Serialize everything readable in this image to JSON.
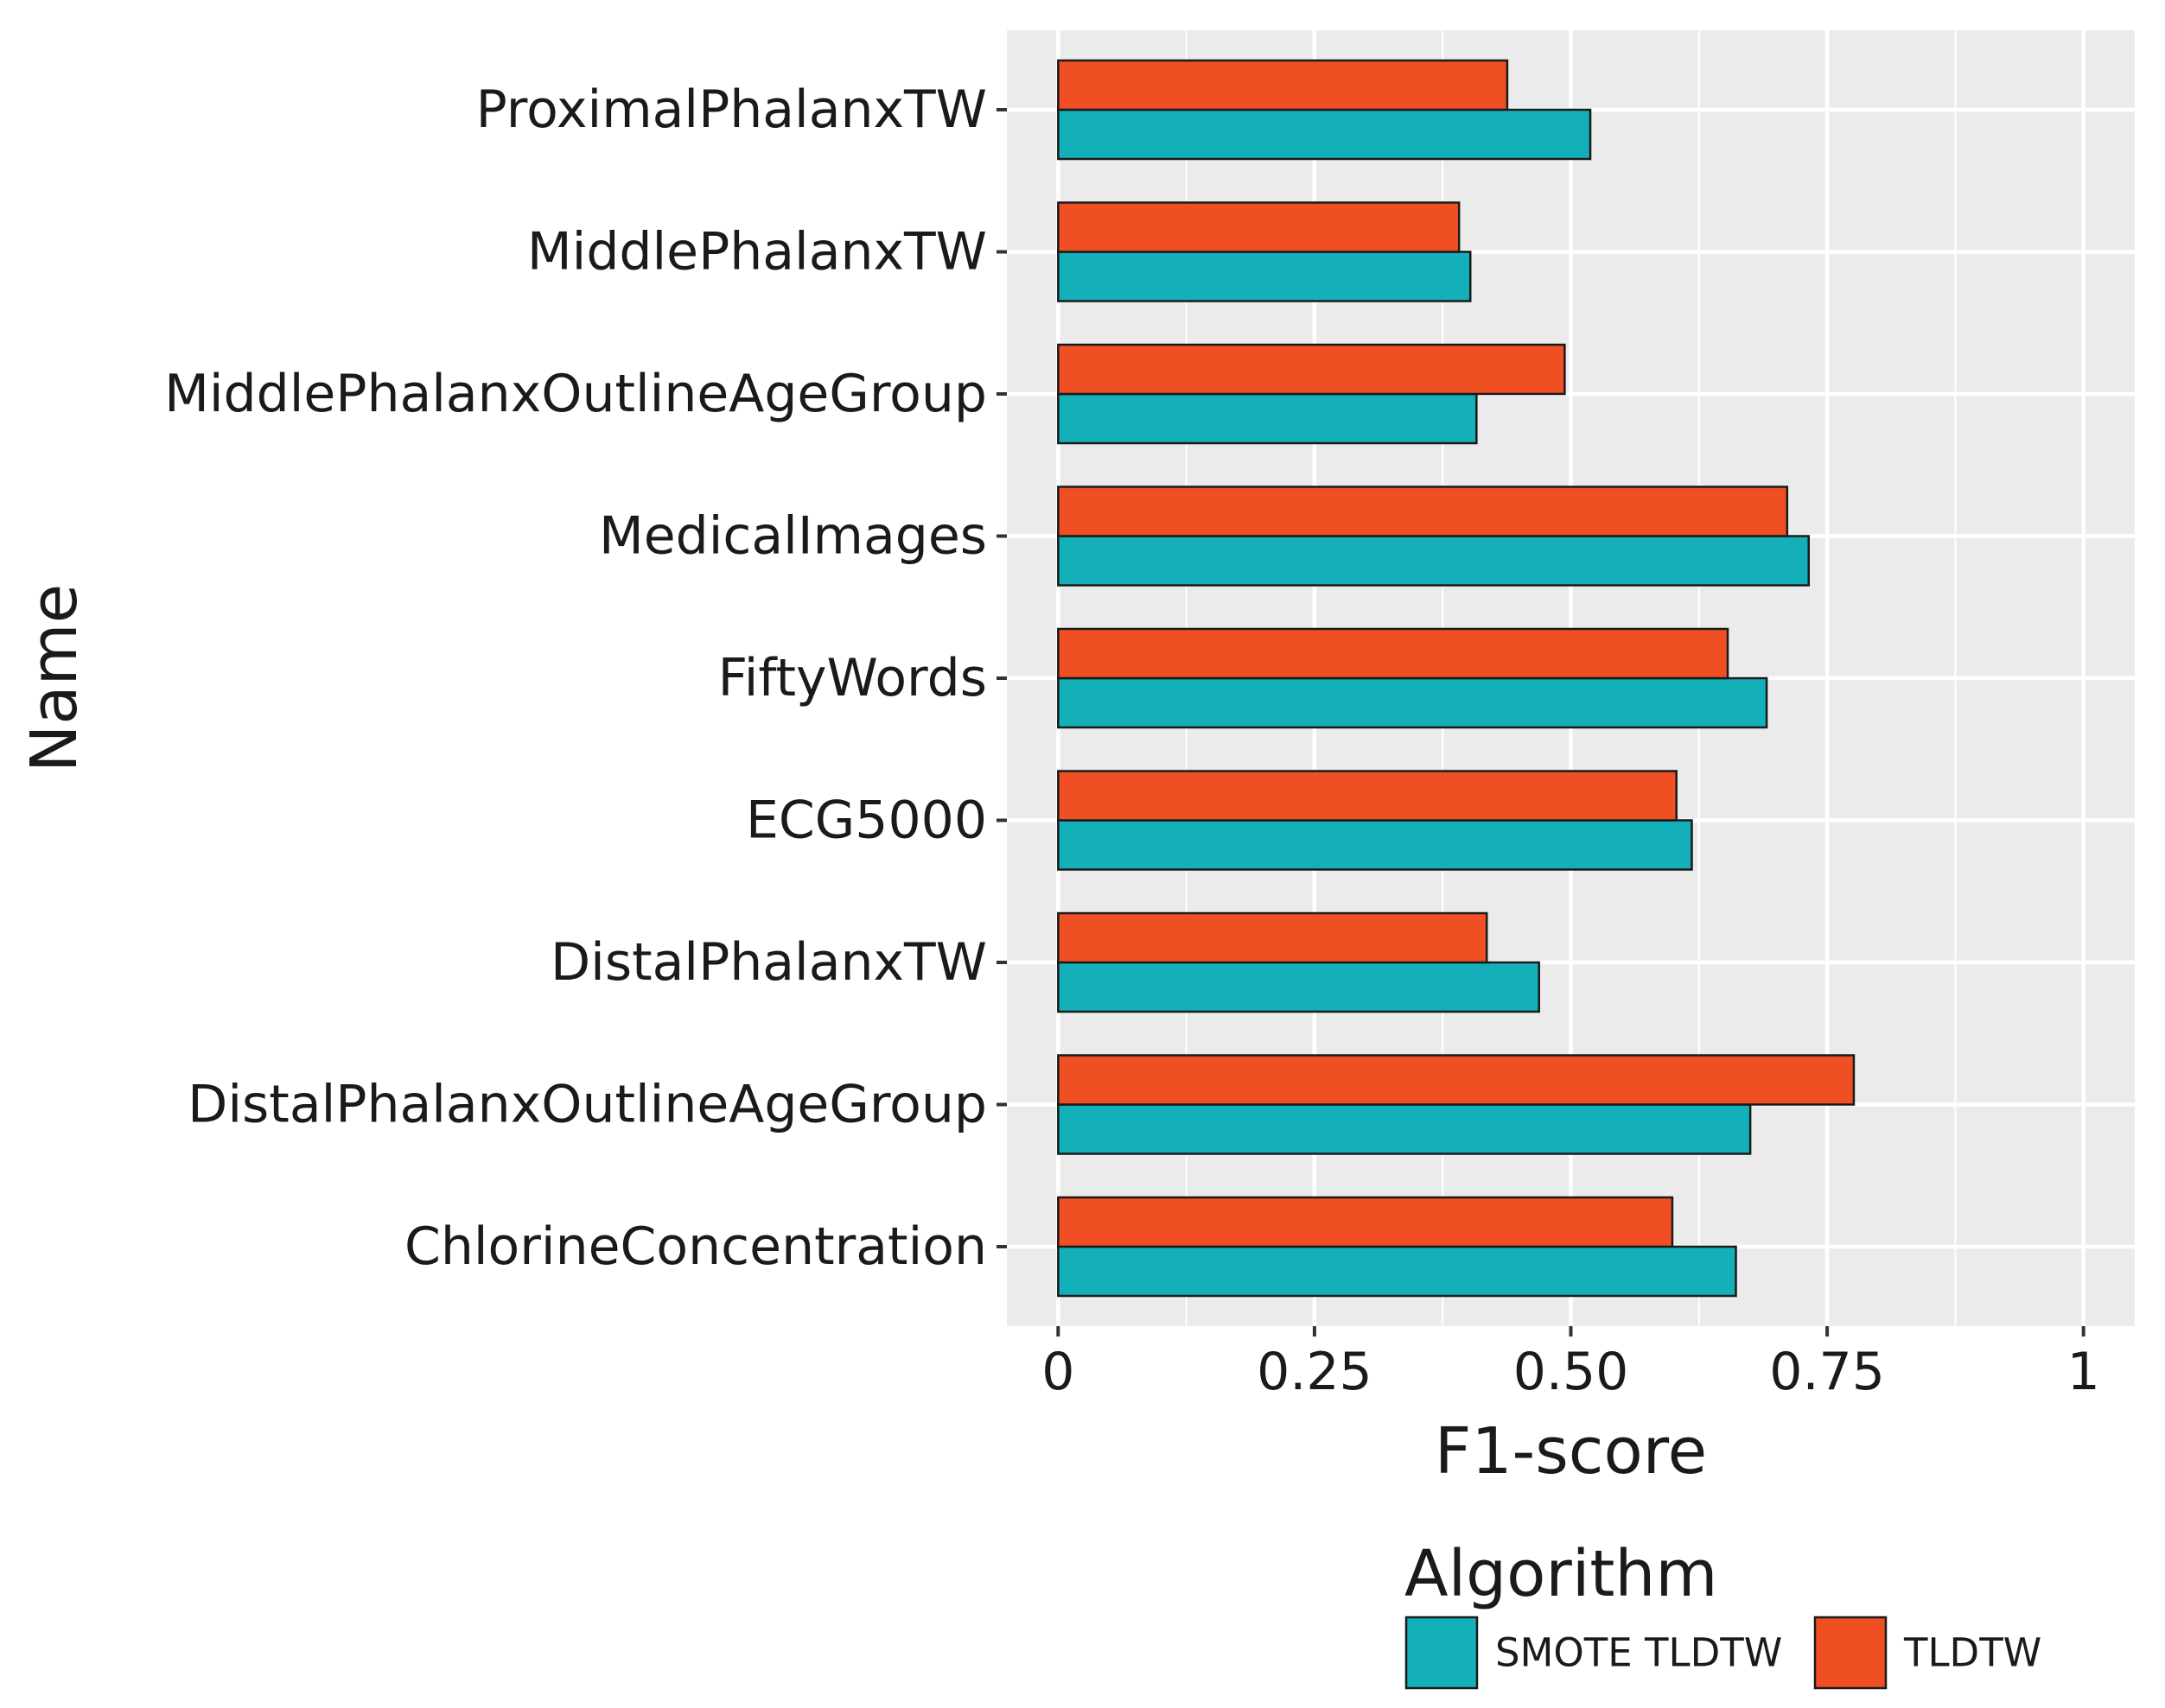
{
  "chart_data": {
    "type": "bar",
    "orientation": "horizontal",
    "categories": [
      "ChlorineConcentration",
      "DistalPhalanxOutlineAgeGroup",
      "DistalPhalanxTW",
      "ECG5000",
      "FiftyWords",
      "MedicalImages",
      "MiddlePhalanxOutlineAgeGroup",
      "MiddlePhalanxTW",
      "ProximalPhalanxTW"
    ],
    "series": [
      {
        "name": "SMOTE TLDTW",
        "color": "#13b0ba",
        "values": [
          0.661,
          0.675,
          0.469,
          0.618,
          0.691,
          0.732,
          0.408,
          0.402,
          0.519
        ]
      },
      {
        "name": "TLDTW",
        "color": "#f04f23",
        "values": [
          0.599,
          0.776,
          0.418,
          0.603,
          0.653,
          0.711,
          0.494,
          0.391,
          0.438
        ]
      }
    ],
    "xlabel": "F1-score",
    "ylabel": "Name",
    "xlim": [
      -0.05,
      1.05
    ],
    "xticks": [
      0,
      0.25,
      0.5,
      0.75,
      1
    ],
    "xtick_labels": [
      "0",
      "0.25",
      "0.50",
      "0.75",
      "1"
    ],
    "grid": true,
    "legend_title": "Algorithm",
    "legend_position": "bottom",
    "panel_background": "#ebebeb",
    "grid_color": "#ffffff"
  }
}
